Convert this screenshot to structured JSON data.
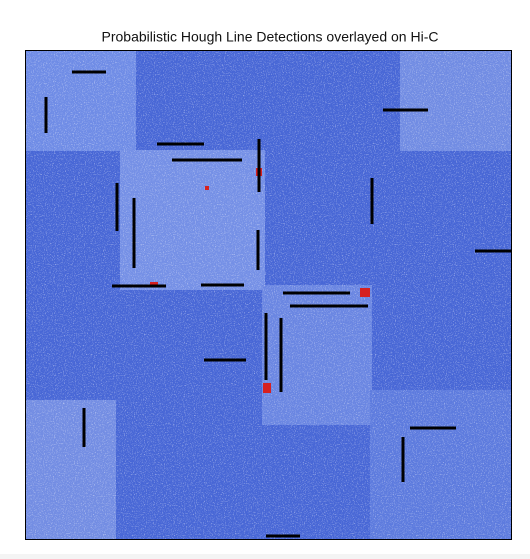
{
  "chart_data": {
    "type": "image",
    "title": "Probabilistic Hough Line Detections overlayed on Hi-C"
  }
}
